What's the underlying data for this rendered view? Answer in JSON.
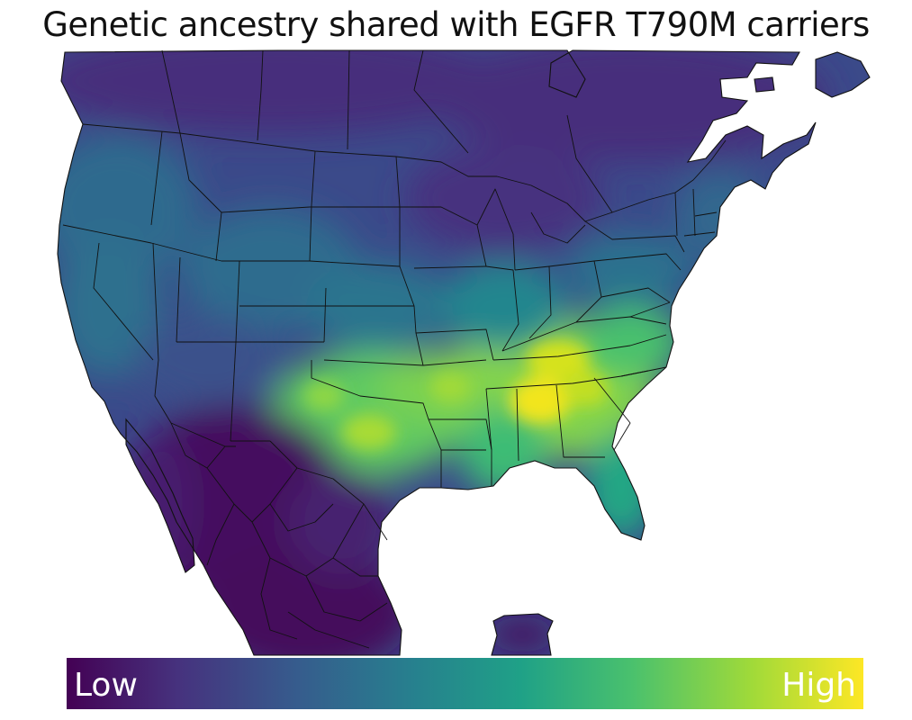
{
  "title": "Genetic ancestry shared with EGFR T790M carriers",
  "colorbar": {
    "low_label": "Low",
    "high_label": "High",
    "colormap": "viridis",
    "colors": [
      "#440154",
      "#46327e",
      "#365c8d",
      "#277f8e",
      "#1fa187",
      "#4ac16d",
      "#a0da39",
      "#fde725"
    ]
  },
  "map": {
    "region": "North America (Canada, United States, Mexico, Cuba)",
    "highest_concentration": "Southeastern United States (Tennessee, Alabama, Georgia, Carolinas)",
    "secondary_concentration": "Texas and Oklahoma",
    "lowest_concentration": "Mexico and northern Canada"
  }
}
